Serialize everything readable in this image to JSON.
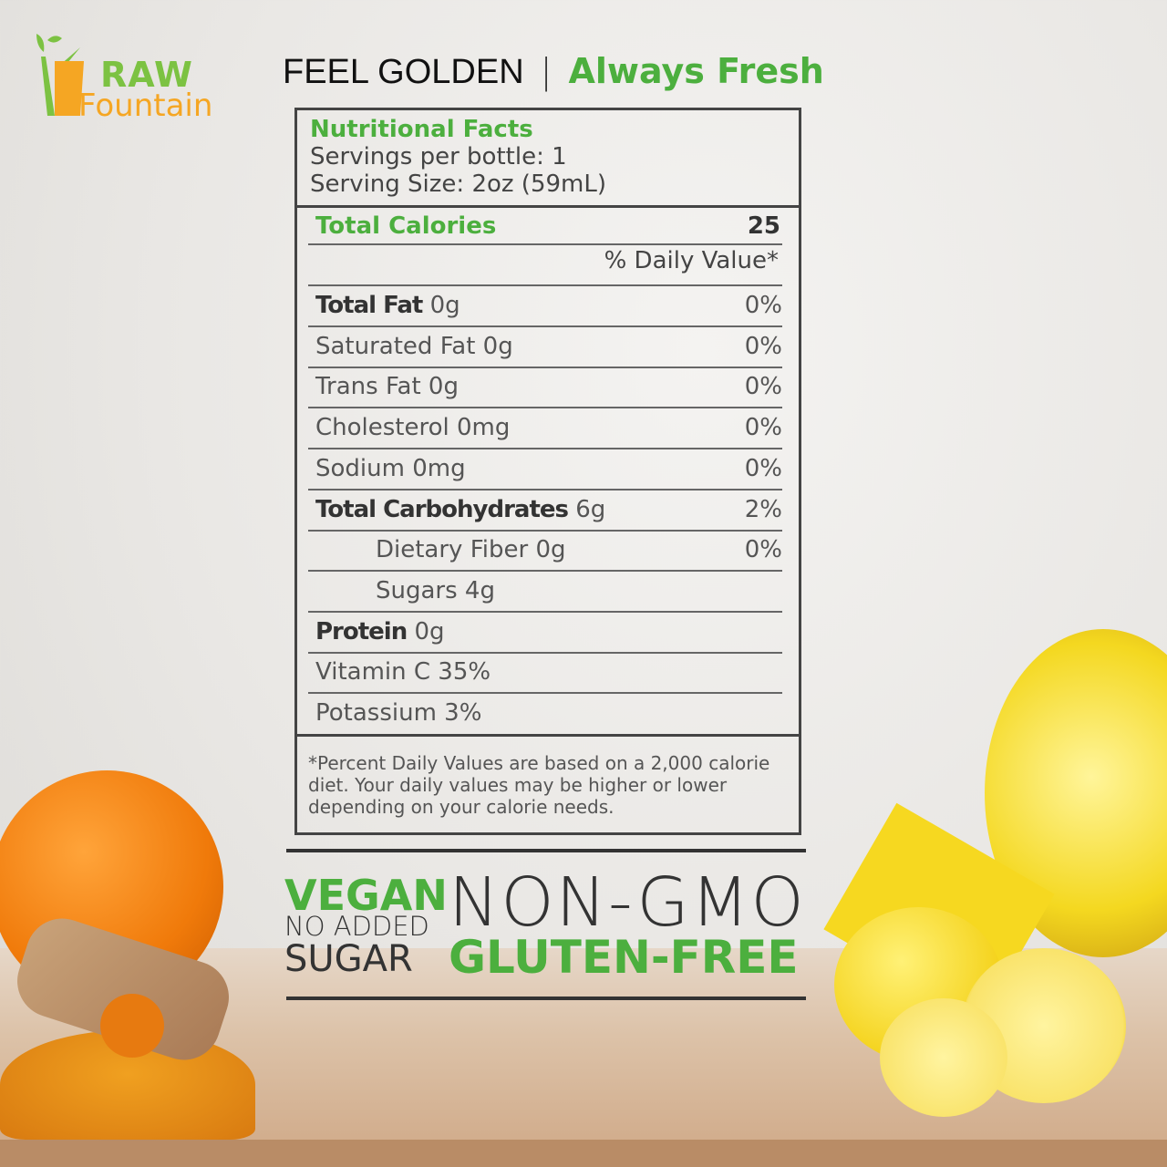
{
  "brand": {
    "line1": "RAW",
    "line2": "Fountain"
  },
  "tagline": {
    "left": "FEEL GOLDEN",
    "separator": "|",
    "right": "Always Fresh"
  },
  "nutrition": {
    "title": "Nutritional Facts",
    "servings": "Servings per bottle: 1",
    "serving_size": "Serving Size: 2oz (59mL)",
    "calories_label": "Total Calories",
    "calories_value": "25",
    "daily_value_header": "% Daily Value*",
    "rows": [
      {
        "bold": "Total Fat",
        "text": "0g",
        "percent": "0%"
      },
      {
        "bold": "",
        "text": "Saturated Fat 0g",
        "percent": "0%"
      },
      {
        "bold": "",
        "text": "Trans Fat 0g",
        "percent": "0%"
      },
      {
        "bold": "",
        "text": "Cholesterol 0mg",
        "percent": "0%"
      },
      {
        "bold": "",
        "text": "Sodium 0mg",
        "percent": "0%"
      },
      {
        "bold": "Total Carbohydrates",
        "text": "6g",
        "percent": "2%"
      },
      {
        "bold": "",
        "text": "Dietary Fiber 0g",
        "percent": "0%",
        "indent": true
      },
      {
        "bold": "",
        "text": "Sugars 4g",
        "percent": "",
        "indent": true
      },
      {
        "bold": "Protein",
        "text": "0g",
        "percent": ""
      },
      {
        "bold": "",
        "text": "Vitamin C 35%",
        "percent": ""
      },
      {
        "bold": "",
        "text": "Potassium 3%",
        "percent": ""
      }
    ],
    "footnote": "*Percent Daily Values are based on a 2,000 calorie diet. Your daily values may be higher or lower depending on your calorie needs."
  },
  "claims": {
    "vegan": "VEGAN",
    "no_added": "NO ADDED",
    "sugar": "SUGAR",
    "non_gmo": "NON-GMO",
    "gluten_free": "GLUTEN-FREE"
  },
  "colors": {
    "green": "#4caf3e",
    "orange": "#f5a623",
    "dark": "#333333"
  }
}
